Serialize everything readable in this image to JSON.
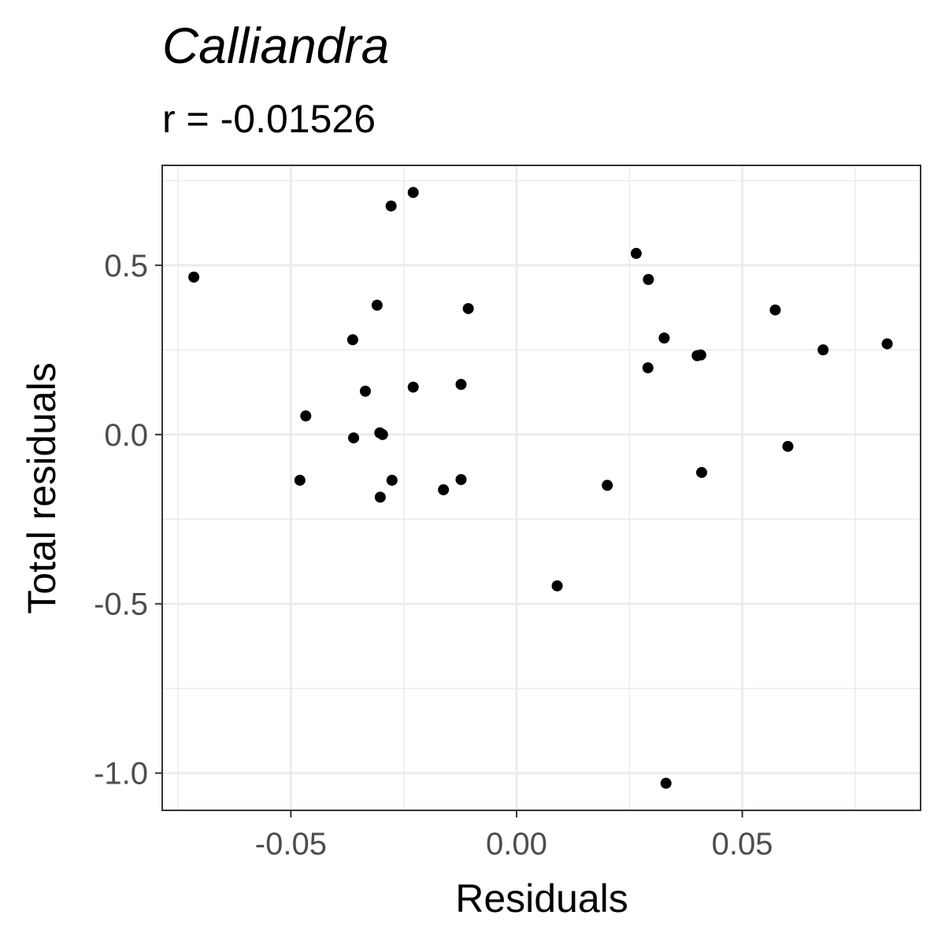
{
  "chart_data": {
    "type": "scatter",
    "title": "Calliandra",
    "subtitle": "r = -0.01526",
    "xlabel": "Residuals",
    "ylabel": "Total residuals",
    "xlim": [
      -0.0785,
      0.0895
    ],
    "ylim": [
      -1.11,
      0.795
    ],
    "x_ticks": [
      -0.05,
      0.0,
      0.05
    ],
    "x_tick_labels": [
      "-0.05",
      "0.00",
      "0.05"
    ],
    "y_ticks": [
      -1.0,
      -0.5,
      0.0,
      0.5
    ],
    "y_tick_labels": [
      "-1.0",
      "-0.5",
      "0.0",
      "0.5"
    ],
    "x_minor": [
      -0.075,
      -0.025,
      0.025,
      0.075
    ],
    "y_minor": [
      -0.75,
      -0.25,
      0.25,
      0.75
    ],
    "grid": true,
    "legend": "none",
    "colors": {
      "point": "#000000",
      "grid": "#ebebeb",
      "panel_border": "#333333",
      "tick_label": "#4d4d4d"
    },
    "points": [
      {
        "x": -0.0715,
        "y": 0.465
      },
      {
        "x": -0.048,
        "y": -0.135
      },
      {
        "x": -0.0467,
        "y": 0.055
      },
      {
        "x": -0.0363,
        "y": 0.28
      },
      {
        "x": -0.0361,
        "y": -0.01
      },
      {
        "x": -0.0335,
        "y": 0.128
      },
      {
        "x": -0.0309,
        "y": 0.382
      },
      {
        "x": -0.0303,
        "y": 0.005
      },
      {
        "x": -0.0297,
        "y": 0.0
      },
      {
        "x": -0.0302,
        "y": -0.185
      },
      {
        "x": -0.0278,
        "y": 0.675
      },
      {
        "x": -0.0276,
        "y": -0.135
      },
      {
        "x": -0.0229,
        "y": 0.715
      },
      {
        "x": -0.0229,
        "y": 0.14
      },
      {
        "x": -0.0162,
        "y": -0.163
      },
      {
        "x": -0.0123,
        "y": 0.148
      },
      {
        "x": -0.0123,
        "y": -0.133
      },
      {
        "x": -0.0107,
        "y": 0.372
      },
      {
        "x": 0.009,
        "y": -0.447
      },
      {
        "x": 0.0201,
        "y": -0.15
      },
      {
        "x": 0.0265,
        "y": 0.535
      },
      {
        "x": 0.0292,
        "y": 0.458
      },
      {
        "x": 0.0291,
        "y": 0.197
      },
      {
        "x": 0.0327,
        "y": 0.285
      },
      {
        "x": 0.0331,
        "y": -1.03
      },
      {
        "x": 0.04,
        "y": 0.233
      },
      {
        "x": 0.0408,
        "y": 0.235
      },
      {
        "x": 0.041,
        "y": -0.112
      },
      {
        "x": 0.0573,
        "y": 0.368
      },
      {
        "x": 0.0601,
        "y": -0.035
      },
      {
        "x": 0.0679,
        "y": 0.25
      },
      {
        "x": 0.0821,
        "y": 0.268
      }
    ]
  }
}
